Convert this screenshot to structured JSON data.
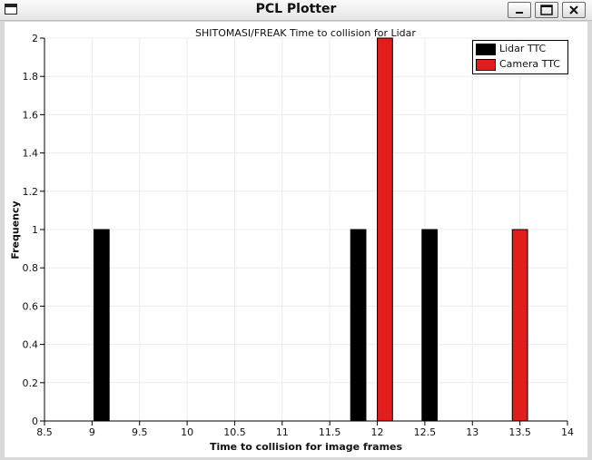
{
  "window": {
    "title": "PCL Plotter",
    "controls": [
      "minimize-icon",
      "maximize-icon",
      "close-icon"
    ]
  },
  "chart_data": {
    "type": "bar",
    "title": "SHITOMASI/FREAK Time to collision for Lidar",
    "xlabel": "Time to collision for image frames",
    "ylabel": "Frequency",
    "xlim": [
      8.5,
      14
    ],
    "ylim": [
      0,
      2
    ],
    "grid": true,
    "legend_position": "top-right",
    "x_ticks": [
      "8.5",
      "9",
      "9.5",
      "10",
      "10.5",
      "11",
      "11.5",
      "12",
      "12.5",
      "13",
      "13.5",
      "14"
    ],
    "y_ticks": [
      "0",
      "0.2",
      "0.4",
      "0.6",
      "0.8",
      "1",
      "1.2",
      "1.4",
      "1.6",
      "1.8",
      "2"
    ],
    "bar_width": 0.16,
    "series": [
      {
        "name": "Lidar TTC",
        "color": "#000000",
        "points": [
          {
            "x": 9.1,
            "y": 1
          },
          {
            "x": 11.8,
            "y": 1
          },
          {
            "x": 12.55,
            "y": 1
          }
        ]
      },
      {
        "name": "Camera TTC",
        "color": "#e31c1c",
        "points": [
          {
            "x": 12.08,
            "y": 2
          },
          {
            "x": 13.5,
            "y": 1
          }
        ]
      }
    ]
  }
}
